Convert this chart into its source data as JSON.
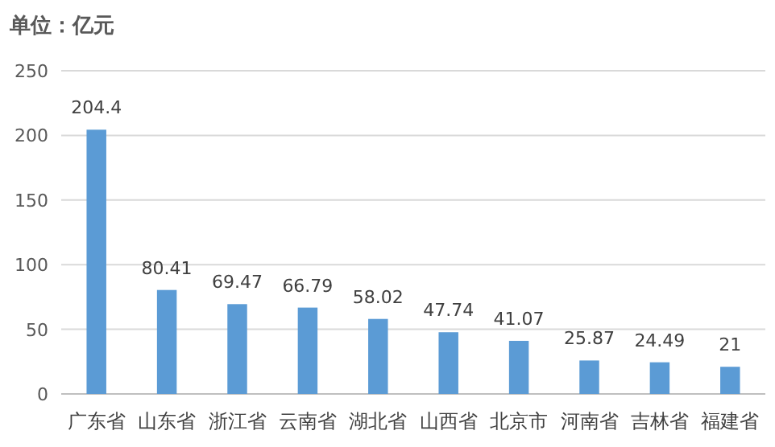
{
  "chart_data": {
    "type": "bar",
    "title": "单位：亿元",
    "categories": [
      "广东省",
      "山东省",
      "浙江省",
      "云南省",
      "湖北省",
      "山西省",
      "北京市",
      "河南省",
      "吉林省",
      "福建省"
    ],
    "values": [
      204.4,
      80.41,
      69.47,
      66.79,
      58.02,
      47.74,
      41.07,
      25.87,
      24.49,
      21
    ],
    "color": "#5b9bd5",
    "ylim": [
      0,
      250
    ],
    "yticks": [
      0,
      50,
      100,
      150,
      200,
      250
    ],
    "grid": "y",
    "data_labels": true
  }
}
